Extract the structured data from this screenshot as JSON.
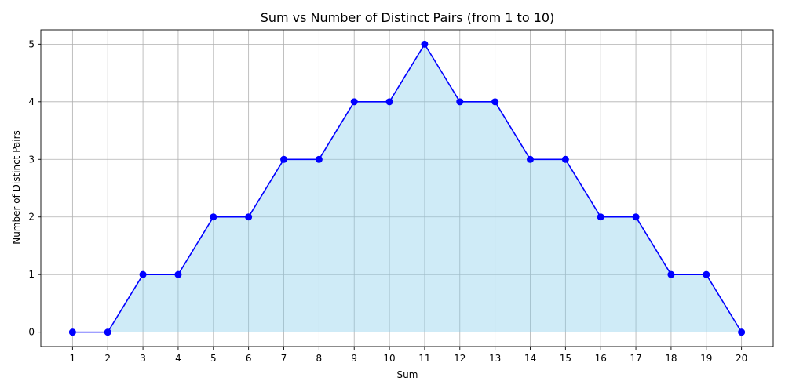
{
  "chart_data": {
    "type": "area",
    "title": "Sum vs Number of Distinct Pairs (from 1 to 10)",
    "xlabel": "Sum",
    "ylabel": "Number of Distinct Pairs",
    "x": [
      1,
      2,
      3,
      4,
      5,
      6,
      7,
      8,
      9,
      10,
      11,
      12,
      13,
      14,
      15,
      16,
      17,
      18,
      19,
      20
    ],
    "series": [
      {
        "values": [
          0,
          0,
          1,
          1,
          2,
          2,
          3,
          3,
          4,
          4,
          5,
          4,
          4,
          3,
          3,
          2,
          2,
          1,
          1,
          0
        ],
        "line_color": "#0000ff",
        "marker_color": "#0000ff",
        "fill_color": "#87ceeb"
      }
    ],
    "x_ticks": [
      "1",
      "2",
      "3",
      "4",
      "5",
      "6",
      "7",
      "8",
      "9",
      "10",
      "11",
      "12",
      "13",
      "14",
      "15",
      "16",
      "17",
      "18",
      "19",
      "20"
    ],
    "y_ticks": [
      "0",
      "1",
      "2",
      "3",
      "4",
      "5"
    ],
    "xlim": [
      0.1,
      20.9
    ],
    "ylim": [
      -0.25,
      5.25
    ],
    "grid": true,
    "grid_color": "#b0b0b0",
    "legend": "none"
  }
}
